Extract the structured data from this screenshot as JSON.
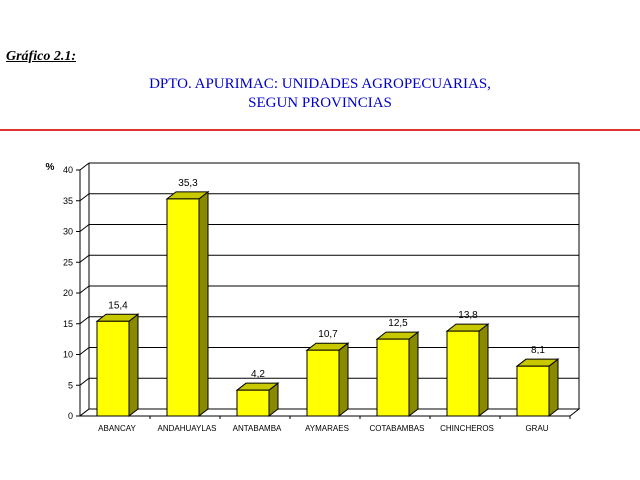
{
  "figure_label": "Gráfico 2.1:",
  "title_lines": [
    "DPTO. APURIMAC: UNIDADES AGROPECUARIAS,",
    "SEGUN PROVINCIAS"
  ],
  "colors": {
    "title": "#0000cc",
    "divider": "#e0322f",
    "bar_front": "#ffff00",
    "bar_top": "#c8c800",
    "bar_side": "#8a8a00"
  },
  "chart_data": {
    "type": "bar",
    "ylabel": "%",
    "ylim": [
      0,
      40
    ],
    "yticks": [
      0,
      5,
      10,
      15,
      20,
      25,
      30,
      35,
      40
    ],
    "grid": true,
    "categories": [
      "ABANCAY",
      "ANDAHUAYLAS",
      "ANTABAMBA",
      "AYMARAES",
      "COTABAMBAS",
      "CHINCHEROS",
      "GRAU"
    ],
    "values": [
      15.4,
      35.3,
      4.2,
      10.7,
      12.5,
      13.8,
      8.1
    ],
    "value_labels": [
      "15,4",
      "35,3",
      "4,2",
      "10,7",
      "12,5",
      "13,8",
      "8,1"
    ]
  }
}
